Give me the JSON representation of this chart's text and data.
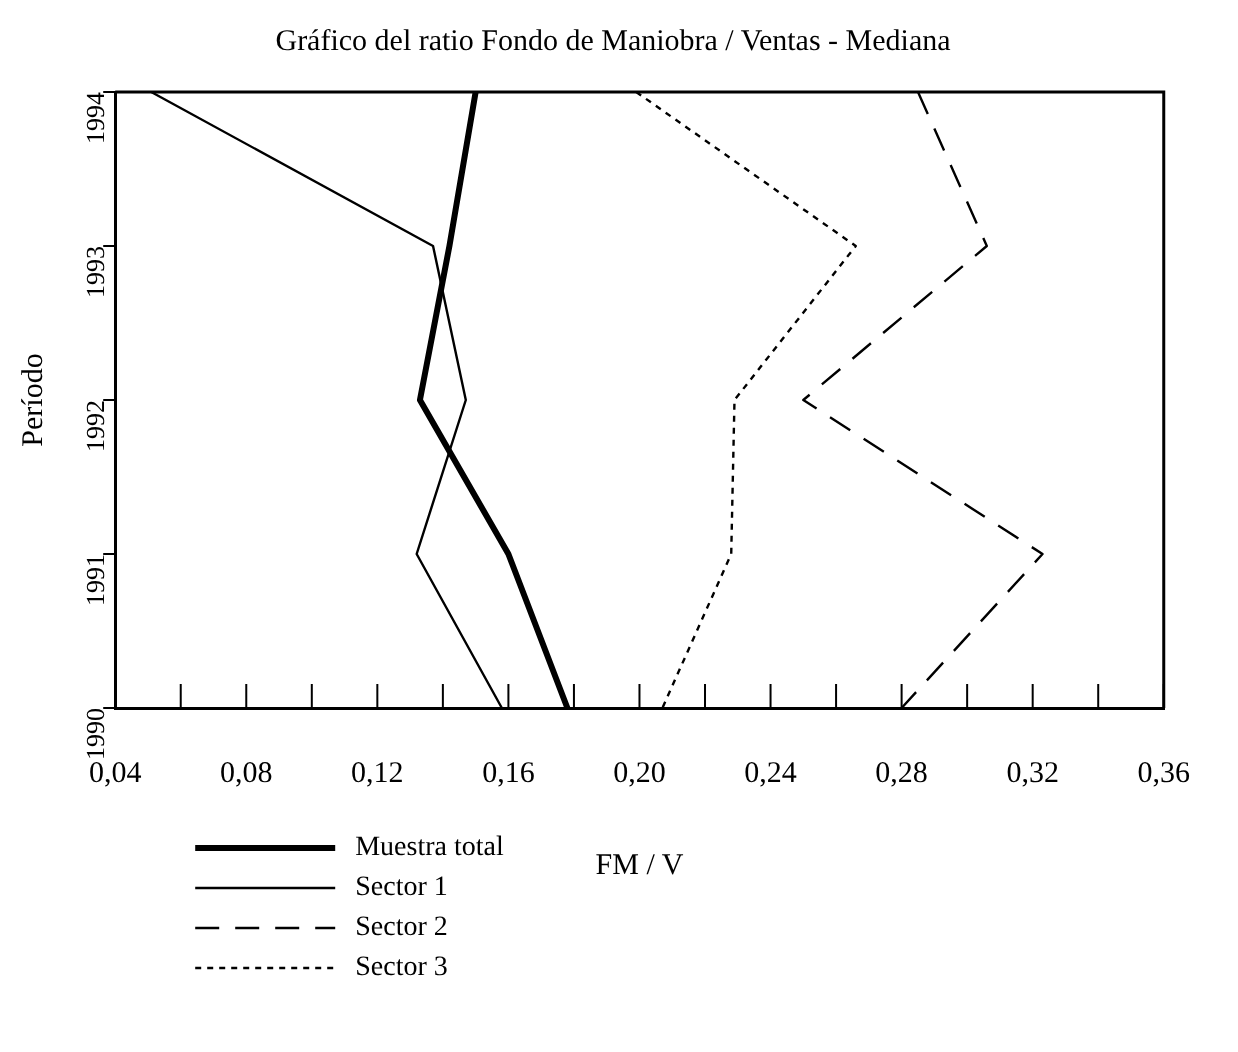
{
  "chart_data": {
    "type": "line",
    "orientation": "horizontal",
    "title": "Gráfico del ratio Fondo de Maniobra / Ventas - Mediana",
    "xlabel": "FM / V",
    "ylabel": "Período",
    "categories": [
      "1994",
      "1993",
      "1992",
      "1991",
      "1990"
    ],
    "series": [
      {
        "name": "Muestra total",
        "color": "#000000",
        "line_style": "solid",
        "values": [
          0.15,
          0.142,
          0.133,
          0.16,
          0.178
        ]
      },
      {
        "name": "Sector 1",
        "color": "#000000",
        "line_style": "solid",
        "values": [
          0.051,
          0.137,
          0.147,
          0.132,
          0.158
        ]
      },
      {
        "name": "Sector 2",
        "color": "#000000",
        "line_style": "dashed",
        "values": [
          0.285,
          0.306,
          0.25,
          0.323,
          0.28
        ]
      },
      {
        "name": "Sector 3",
        "color": "#000000",
        "line_style": "dotted",
        "values": [
          0.199,
          0.266,
          0.229,
          0.228,
          0.207
        ]
      }
    ],
    "xlim": [
      0.04,
      0.36
    ],
    "xticks": [
      {
        "value": 0.04,
        "label": "0,04"
      },
      {
        "value": 0.06,
        "label": null
      },
      {
        "value": 0.08,
        "label": "0,08"
      },
      {
        "value": 0.1,
        "label": null
      },
      {
        "value": 0.12,
        "label": "0,12"
      },
      {
        "value": 0.14,
        "label": null
      },
      {
        "value": 0.16,
        "label": "0,16"
      },
      {
        "value": 0.18,
        "label": null
      },
      {
        "value": 0.2,
        "label": "0,20"
      },
      {
        "value": 0.22,
        "label": null
      },
      {
        "value": 0.24,
        "label": "0,24"
      },
      {
        "value": 0.26,
        "label": null
      },
      {
        "value": 0.28,
        "label": "0,28"
      },
      {
        "value": 0.3,
        "label": null
      },
      {
        "value": 0.32,
        "label": "0,32"
      },
      {
        "value": 0.34,
        "label": null
      },
      {
        "value": 0.36,
        "label": "0,36"
      }
    ],
    "grid": false,
    "legend": "bottom",
    "marker": "none"
  }
}
